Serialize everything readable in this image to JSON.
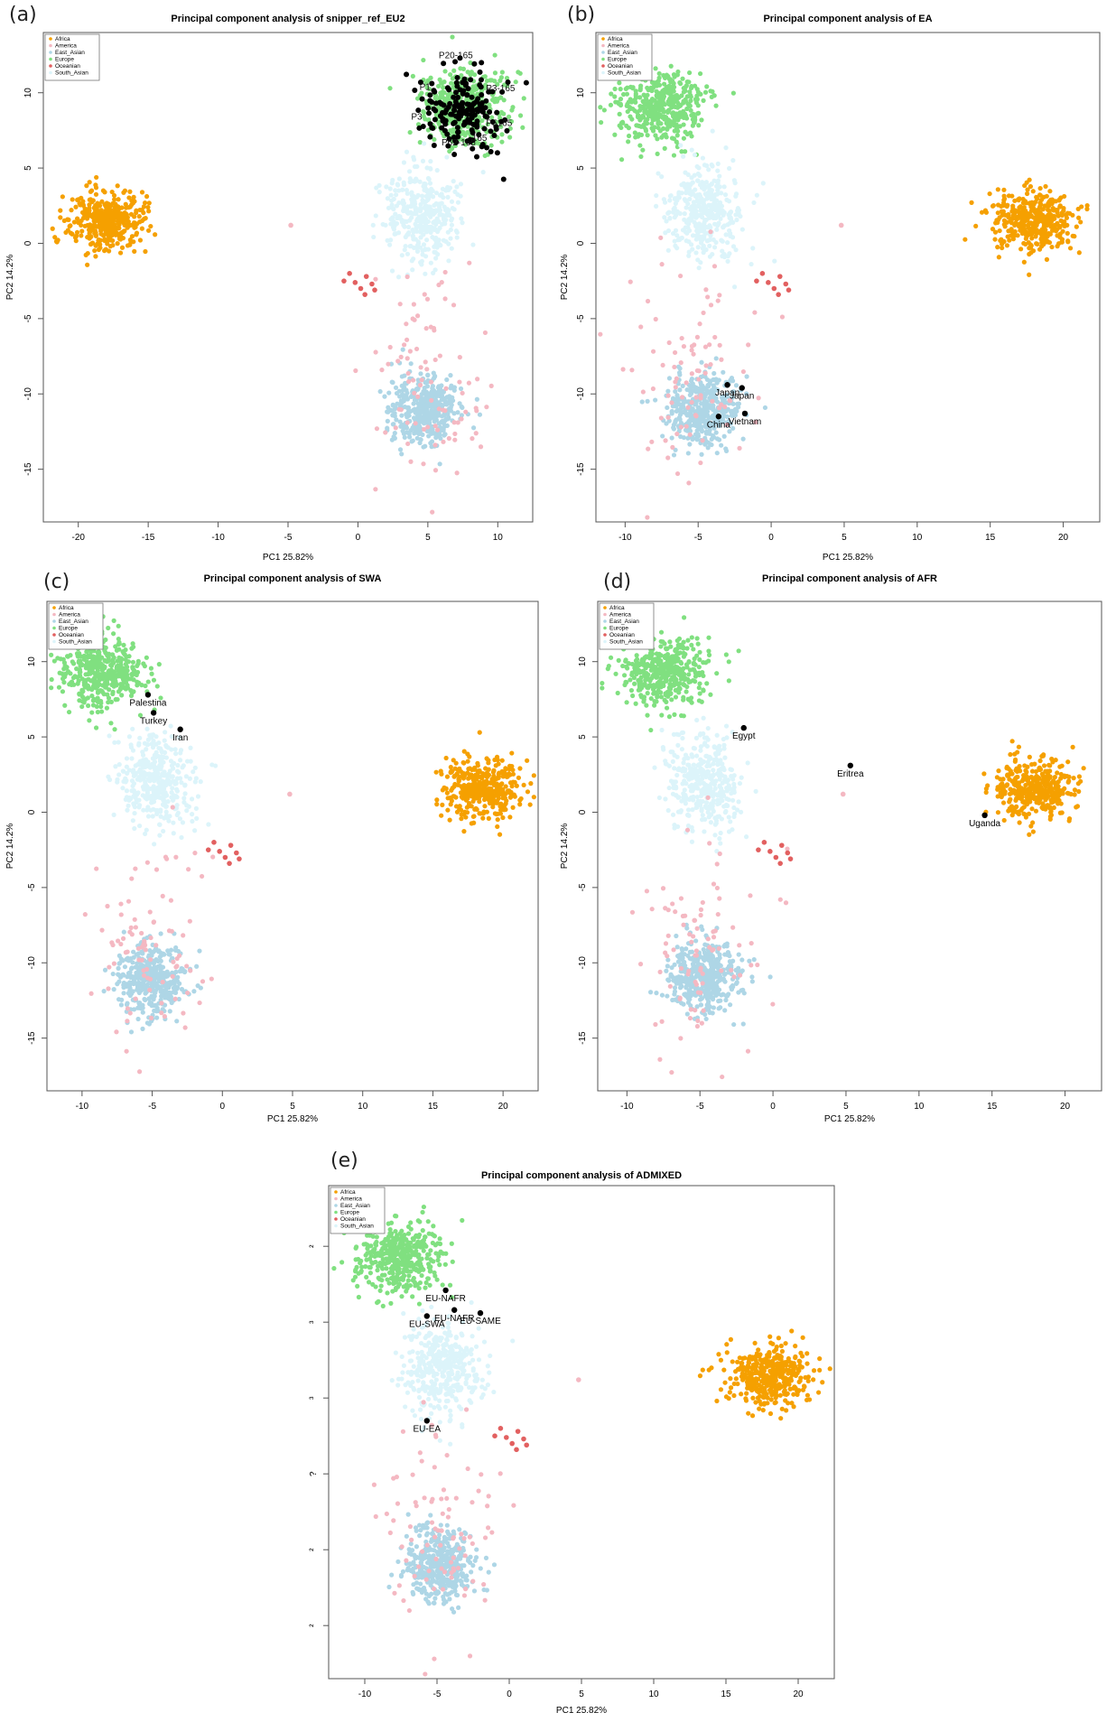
{
  "figure": {
    "panels": [
      {
        "id": "a",
        "label": "(a)",
        "title": "Principal component analysis of snipper_ref_EU2"
      },
      {
        "id": "b",
        "label": "(b)",
        "title": "Principal component analysis of EA"
      },
      {
        "id": "c",
        "label": "(c)",
        "title": "Principal component analysis of SWA"
      },
      {
        "id": "d",
        "label": "(d)",
        "title": "Principal component analysis of AFR"
      },
      {
        "id": "e",
        "label": "(e)",
        "title": "Principal component analysis of ADMIXED"
      }
    ]
  },
  "colors": {
    "Africa": "#f5a000",
    "America": "#f4b8c2",
    "East_Asian": "#aed6e6",
    "Europe": "#80e080",
    "Oceanian": "#e26060",
    "South_Asian": "#dcf4fa",
    "sample": "#000000",
    "frame": "#555555"
  },
  "chart_data": [
    {
      "panel": "a",
      "type": "scatter",
      "title": "Principal component analysis of snipper_ref_EU2",
      "xlabel": "PC1  25.82%",
      "ylabel": "PC2  14.2%",
      "xlim": [
        -22.5,
        12.5
      ],
      "ylim": [
        -18.5,
        14
      ],
      "xticks": [
        -20,
        -15,
        -10,
        -5,
        0,
        5,
        10
      ],
      "yticks": [
        -15,
        -10,
        -5,
        0,
        5,
        10
      ],
      "legend": {
        "position": "top-left",
        "entries": [
          "Africa",
          "America",
          "East_Asian",
          "Europe",
          "Oceanian",
          "South_Asian"
        ]
      },
      "clusters": [
        {
          "group": "Africa",
          "center": [
            -18,
            1.5
          ],
          "spread": [
            1.4,
            1.0
          ],
          "n": 380
        },
        {
          "group": "Europe",
          "center": [
            7.5,
            9
          ],
          "spread": [
            1.5,
            1.2
          ],
          "n": 420
        },
        {
          "group": "South_Asian",
          "center": [
            4.5,
            2
          ],
          "spread": [
            1.3,
            1.6
          ],
          "n": 380
        },
        {
          "group": "East_Asian",
          "center": [
            4.8,
            -11
          ],
          "spread": [
            1.2,
            1.2
          ],
          "n": 420
        },
        {
          "group": "America",
          "center": [
            5,
            -9
          ],
          "spread": [
            2.0,
            3.5
          ],
          "n": 90
        }
      ],
      "points": [
        {
          "group": "America",
          "x": -4.8,
          "y": 1.2
        },
        {
          "group": "Oceanian",
          "x": -1,
          "y": -2.5
        },
        {
          "group": "Oceanian",
          "x": -0.6,
          "y": -2.0
        },
        {
          "group": "Oceanian",
          "x": 0.2,
          "y": -3.0
        },
        {
          "group": "Oceanian",
          "x": 0.6,
          "y": -2.2
        },
        {
          "group": "Oceanian",
          "x": 1.2,
          "y": -3.1
        },
        {
          "group": "Oceanian",
          "x": 0.5,
          "y": -3.4
        },
        {
          "group": "Oceanian",
          "x": -0.2,
          "y": -2.6
        },
        {
          "group": "Oceanian",
          "x": 1.0,
          "y": -2.7
        }
      ],
      "samples": {
        "count": 180,
        "center": [
          7.6,
          8.8
        ],
        "spread": [
          1.5,
          1.4
        ],
        "labels": [
          {
            "x": 7.0,
            "y": 12.3,
            "text": "P20-165"
          },
          {
            "x": 10.2,
            "y": 10.1,
            "text": "P3-165"
          },
          {
            "x": 4.8,
            "y": 10.2,
            "text": "P1"
          },
          {
            "x": 4.2,
            "y": 8.2,
            "text": "P3"
          },
          {
            "x": 10.1,
            "y": 7.8,
            "text": "P5165"
          },
          {
            "x": 7.2,
            "y": 6.5,
            "text": "P62-165"
          },
          {
            "x": 8.7,
            "y": 6.8,
            "text": "165"
          }
        ]
      }
    },
    {
      "panel": "b",
      "type": "scatter",
      "title": "Principal component analysis of EA",
      "xlabel": "PC1  25.82%",
      "ylabel": "PC2  14.2%",
      "xlim": [
        -12,
        22.5
      ],
      "ylim": [
        -18.5,
        14
      ],
      "xticks": [
        -10,
        -5,
        0,
        5,
        10,
        15,
        20
      ],
      "yticks": [
        -15,
        -10,
        -5,
        0,
        5,
        10
      ],
      "legend": {
        "position": "top-left",
        "entries": [
          "Africa",
          "America",
          "East_Asian",
          "Europe",
          "Oceanian",
          "South_Asian"
        ]
      },
      "clusters": [
        {
          "group": "Europe",
          "center": [
            -7.5,
            9
          ],
          "spread": [
            1.5,
            1.2
          ],
          "n": 420
        },
        {
          "group": "South_Asian",
          "center": [
            -4.7,
            2
          ],
          "spread": [
            1.3,
            1.6
          ],
          "n": 380
        },
        {
          "group": "East_Asian",
          "center": [
            -4.8,
            -11
          ],
          "spread": [
            1.2,
            1.2
          ],
          "n": 420
        },
        {
          "group": "America",
          "center": [
            -5,
            -9
          ],
          "spread": [
            2.0,
            3.5
          ],
          "n": 90
        },
        {
          "group": "Africa",
          "center": [
            18,
            1.5
          ],
          "spread": [
            1.4,
            1.0
          ],
          "n": 380
        }
      ],
      "points": [
        {
          "group": "America",
          "x": 4.8,
          "y": 1.2
        },
        {
          "group": "Oceanian",
          "x": -1,
          "y": -2.5
        },
        {
          "group": "Oceanian",
          "x": -0.6,
          "y": -2.0
        },
        {
          "group": "Oceanian",
          "x": 0.2,
          "y": -3.0
        },
        {
          "group": "Oceanian",
          "x": 0.6,
          "y": -2.2
        },
        {
          "group": "Oceanian",
          "x": 1.2,
          "y": -3.1
        },
        {
          "group": "Oceanian",
          "x": 0.5,
          "y": -3.4
        },
        {
          "group": "Oceanian",
          "x": -0.2,
          "y": -2.6
        },
        {
          "group": "Oceanian",
          "x": 1.0,
          "y": -2.7
        }
      ],
      "samples": {
        "points": [
          {
            "x": -3.0,
            "y": -9.4,
            "label": "Japan"
          },
          {
            "x": -2.0,
            "y": -9.6,
            "label": "Japan"
          },
          {
            "x": -1.8,
            "y": -11.3,
            "label": "Vietnam"
          },
          {
            "x": -3.6,
            "y": -11.5,
            "label": "China"
          }
        ]
      }
    },
    {
      "panel": "c",
      "type": "scatter",
      "title": "Principal component analysis of SWA",
      "xlabel": "PC1  25.82%",
      "ylabel": "PC2  14.2%",
      "xlim": [
        -12.5,
        22.5
      ],
      "ylim": [
        -18.5,
        14
      ],
      "xticks": [
        -10,
        -5,
        0,
        5,
        10,
        15,
        20
      ],
      "yticks": [
        -15,
        -10,
        -5,
        0,
        5,
        10
      ],
      "legend": {
        "position": "top-left",
        "entries": [
          "Africa",
          "America",
          "East_Asian",
          "Europe",
          "Oceanian",
          "South_Asian"
        ]
      },
      "clusters": [
        {
          "group": "Europe",
          "center": [
            -8.5,
            9.3
          ],
          "spread": [
            1.5,
            1.2
          ],
          "n": 420
        },
        {
          "group": "South_Asian",
          "center": [
            -4.7,
            2
          ],
          "spread": [
            1.3,
            1.6
          ],
          "n": 380
        },
        {
          "group": "East_Asian",
          "center": [
            -5,
            -11
          ],
          "spread": [
            1.2,
            1.2
          ],
          "n": 420
        },
        {
          "group": "America",
          "center": [
            -5,
            -9
          ],
          "spread": [
            2.0,
            3.5
          ],
          "n": 90
        },
        {
          "group": "Africa",
          "center": [
            18.5,
            1.5
          ],
          "spread": [
            1.4,
            1.0
          ],
          "n": 380
        }
      ],
      "points": [
        {
          "group": "America",
          "x": 4.8,
          "y": 1.2
        },
        {
          "group": "Oceanian",
          "x": -1,
          "y": -2.5
        },
        {
          "group": "Oceanian",
          "x": -0.6,
          "y": -2.0
        },
        {
          "group": "Oceanian",
          "x": 0.2,
          "y": -3.0
        },
        {
          "group": "Oceanian",
          "x": 0.6,
          "y": -2.2
        },
        {
          "group": "Oceanian",
          "x": 1.2,
          "y": -3.1
        },
        {
          "group": "Oceanian",
          "x": 0.5,
          "y": -3.4
        },
        {
          "group": "Oceanian",
          "x": -0.2,
          "y": -2.6
        },
        {
          "group": "Oceanian",
          "x": 1.0,
          "y": -2.7
        }
      ],
      "samples": {
        "points": [
          {
            "x": -5.3,
            "y": 7.8,
            "label": "Palestina"
          },
          {
            "x": -4.9,
            "y": 6.6,
            "label": "Turkey"
          },
          {
            "x": -3.0,
            "y": 5.5,
            "label": "Iran"
          }
        ]
      }
    },
    {
      "panel": "d",
      "type": "scatter",
      "title": "Principal component analysis of AFR",
      "xlabel": "PC1  25.82%",
      "ylabel": "PC2  14.2%",
      "xlim": [
        -12,
        22.5
      ],
      "ylim": [
        -18.5,
        14
      ],
      "xticks": [
        -10,
        -5,
        0,
        5,
        10,
        15,
        20
      ],
      "yticks": [
        -15,
        -10,
        -5,
        0,
        5,
        10
      ],
      "legend": {
        "position": "top-left",
        "entries": [
          "Africa",
          "America",
          "East_Asian",
          "Europe",
          "Oceanian",
          "South_Asian"
        ]
      },
      "clusters": [
        {
          "group": "Europe",
          "center": [
            -7.5,
            9.3
          ],
          "spread": [
            1.5,
            1.2
          ],
          "n": 420
        },
        {
          "group": "South_Asian",
          "center": [
            -4.7,
            2
          ],
          "spread": [
            1.3,
            1.6
          ],
          "n": 380
        },
        {
          "group": "East_Asian",
          "center": [
            -4.8,
            -11
          ],
          "spread": [
            1.2,
            1.2
          ],
          "n": 420
        },
        {
          "group": "America",
          "center": [
            -5,
            -9
          ],
          "spread": [
            2.0,
            3.5
          ],
          "n": 90
        },
        {
          "group": "Africa",
          "center": [
            18,
            1.5
          ],
          "spread": [
            1.4,
            1.0
          ],
          "n": 380
        }
      ],
      "points": [
        {
          "group": "America",
          "x": 4.8,
          "y": 1.2
        },
        {
          "group": "Oceanian",
          "x": -1,
          "y": -2.5
        },
        {
          "group": "Oceanian",
          "x": -0.6,
          "y": -2.0
        },
        {
          "group": "Oceanian",
          "x": 0.2,
          "y": -3.0
        },
        {
          "group": "Oceanian",
          "x": 0.6,
          "y": -2.2
        },
        {
          "group": "Oceanian",
          "x": 1.2,
          "y": -3.1
        },
        {
          "group": "Oceanian",
          "x": 0.5,
          "y": -3.4
        },
        {
          "group": "Oceanian",
          "x": -0.2,
          "y": -2.6
        },
        {
          "group": "Oceanian",
          "x": 1.0,
          "y": -2.7
        }
      ],
      "samples": {
        "points": [
          {
            "x": -2.0,
            "y": 5.6,
            "label": "Egypt"
          },
          {
            "x": 5.3,
            "y": 3.1,
            "label": "Eritrea"
          },
          {
            "x": 14.5,
            "y": -0.2,
            "label": "Uganda"
          }
        ]
      }
    },
    {
      "panel": "e",
      "type": "scatter",
      "title": "Principal component analysis of ADMIXED",
      "xlabel": "PC1  25.82%",
      "ylabel": "",
      "xlim": [
        -12.5,
        22.5
      ],
      "ylim": [
        -18.5,
        14
      ],
      "xticks": [
        -10,
        -5,
        0,
        5,
        10,
        15,
        20
      ],
      "yticks": [
        -15,
        -10,
        -5,
        0,
        5,
        10
      ],
      "ytick_labels": [
        "²",
        "²",
        "?",
        "³",
        "³",
        "²"
      ],
      "legend": {
        "position": "top-left",
        "entries": [
          "Africa",
          "America",
          "East_Asian",
          "Europe",
          "Oceanian",
          "South_Asian"
        ]
      },
      "clusters": [
        {
          "group": "Europe",
          "center": [
            -7.5,
            9.3
          ],
          "spread": [
            1.5,
            1.2
          ],
          "n": 420
        },
        {
          "group": "South_Asian",
          "center": [
            -4.7,
            2
          ],
          "spread": [
            1.3,
            1.6
          ],
          "n": 380
        },
        {
          "group": "East_Asian",
          "center": [
            -4.8,
            -11
          ],
          "spread": [
            1.2,
            1.2
          ],
          "n": 420
        },
        {
          "group": "America",
          "center": [
            -5,
            -9
          ],
          "spread": [
            2.0,
            3.5
          ],
          "n": 90
        },
        {
          "group": "Africa",
          "center": [
            18,
            1.5
          ],
          "spread": [
            1.4,
            1.0
          ],
          "n": 380
        }
      ],
      "points": [
        {
          "group": "America",
          "x": 4.8,
          "y": 1.2
        },
        {
          "group": "Oceanian",
          "x": -1,
          "y": -2.5
        },
        {
          "group": "Oceanian",
          "x": -0.6,
          "y": -2.0
        },
        {
          "group": "Oceanian",
          "x": 0.2,
          "y": -3.0
        },
        {
          "group": "Oceanian",
          "x": 0.6,
          "y": -2.2
        },
        {
          "group": "Oceanian",
          "x": 1.2,
          "y": -3.1
        },
        {
          "group": "Oceanian",
          "x": 0.5,
          "y": -3.4
        },
        {
          "group": "Oceanian",
          "x": -0.2,
          "y": -2.6
        },
        {
          "group": "Oceanian",
          "x": 1.0,
          "y": -2.7
        }
      ],
      "samples": {
        "points": [
          {
            "x": -4.4,
            "y": 7.1,
            "label": "EU-NAFR"
          },
          {
            "x": -3.8,
            "y": 5.8,
            "label": "EU-NAFR"
          },
          {
            "x": -2.0,
            "y": 5.6,
            "label": "EU-SAME"
          },
          {
            "x": -5.7,
            "y": 5.4,
            "label": "EU-SWA"
          },
          {
            "x": -5.7,
            "y": -1.5,
            "label": "EU-EA"
          }
        ]
      }
    }
  ]
}
